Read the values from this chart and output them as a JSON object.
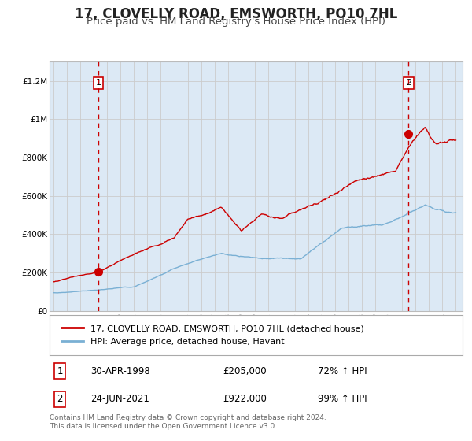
{
  "title": "17, CLOVELLY ROAD, EMSWORTH, PO10 7HL",
  "subtitle": "Price paid vs. HM Land Registry's House Price Index (HPI)",
  "title_fontsize": 12,
  "subtitle_fontsize": 9.5,
  "background_color": "#ffffff",
  "plot_bg_color": "#dce9f5",
  "grid_color": "#cccccc",
  "red_line_color": "#cc0000",
  "blue_line_color": "#7ab0d4",
  "marker1_date_x": 1998.33,
  "marker1_y": 205000,
  "marker2_date_x": 2021.48,
  "marker2_y": 922000,
  "vline1_x": 1998.33,
  "vline2_x": 2021.48,
  "vline_color": "#cc0000",
  "xlim_left": 1994.7,
  "xlim_right": 2025.5,
  "ylim_bottom": 0,
  "ylim_top": 1300000,
  "yticks": [
    0,
    200000,
    400000,
    600000,
    800000,
    1000000,
    1200000
  ],
  "ytick_labels": [
    "£0",
    "£200K",
    "£400K",
    "£600K",
    "£800K",
    "£1M",
    "£1.2M"
  ],
  "xticks": [
    1995,
    1996,
    1997,
    1998,
    1999,
    2000,
    2001,
    2002,
    2003,
    2004,
    2005,
    2006,
    2007,
    2008,
    2009,
    2010,
    2011,
    2012,
    2013,
    2014,
    2015,
    2016,
    2017,
    2018,
    2019,
    2020,
    2021,
    2022,
    2023,
    2024,
    2025
  ],
  "legend_label_red": "17, CLOVELLY ROAD, EMSWORTH, PO10 7HL (detached house)",
  "legend_label_blue": "HPI: Average price, detached house, Havant",
  "table_row1": [
    "1",
    "30-APR-1998",
    "£205,000",
    "72% ↑ HPI"
  ],
  "table_row2": [
    "2",
    "24-JUN-2021",
    "£922,000",
    "99% ↑ HPI"
  ],
  "footer": "Contains HM Land Registry data © Crown copyright and database right 2024.\nThis data is licensed under the Open Government Licence v3.0."
}
